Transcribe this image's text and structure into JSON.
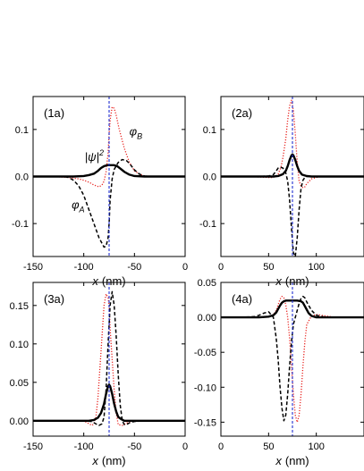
{
  "chart_data": [
    {
      "type": "line",
      "panel_label": "(1a)",
      "xlabel_italic": "x",
      "xlabel_unit": "(nm)",
      "xlim": [
        -150,
        0
      ],
      "ylim": [
        -0.17,
        0.17
      ],
      "xticks": [
        -150,
        -100,
        -50,
        0
      ],
      "xtick_labels": [
        "-150",
        "-100",
        "-50",
        "0"
      ],
      "yticks": [
        -0.1,
        0.0,
        0.1
      ],
      "ytick_labels": [
        "-0.1",
        "0.0",
        "0.1"
      ],
      "vline_x": -75,
      "annotations": [
        {
          "text": "|ψ|²",
          "x": -99,
          "y": 0.033
        },
        {
          "text": "φB",
          "x": -55,
          "y": 0.087
        },
        {
          "text": "φA",
          "x": -112,
          "y": -0.068
        }
      ],
      "series": [
        {
          "style": "dotted-red",
          "x": [
            -130,
            -115,
            -105,
            -100,
            -95,
            -90,
            -85,
            -82,
            -80,
            -78,
            -76,
            -75,
            -74,
            -72,
            -70,
            -68,
            -65,
            -60,
            -55,
            -50,
            -45,
            -40,
            -35,
            -30,
            -20
          ],
          "y": [
            0,
            -0.002,
            -0.005,
            -0.008,
            -0.012,
            -0.018,
            -0.022,
            -0.018,
            -0.01,
            0.01,
            0.05,
            0.09,
            0.12,
            0.148,
            0.145,
            0.13,
            0.1,
            0.06,
            0.03,
            0.012,
            0.005,
            0.001,
            0,
            0,
            0
          ]
        },
        {
          "style": "dashed-black",
          "x": [
            -130,
            -120,
            -115,
            -110,
            -105,
            -100,
            -95,
            -90,
            -85,
            -80,
            -78,
            -76,
            -75,
            -74,
            -72,
            -70,
            -66,
            -62,
            -58,
            -55,
            -50,
            -45,
            -40,
            -30,
            -20
          ],
          "y": [
            0,
            0,
            -0.002,
            -0.008,
            -0.02,
            -0.04,
            -0.07,
            -0.1,
            -0.13,
            -0.15,
            -0.148,
            -0.13,
            -0.1,
            -0.05,
            -0.005,
            0.015,
            0.03,
            0.036,
            0.034,
            0.028,
            0.014,
            0.005,
            0.001,
            0,
            0
          ]
        },
        {
          "style": "solid-black",
          "x": [
            -150,
            -110,
            -100,
            -95,
            -90,
            -86,
            -83,
            -80,
            -77,
            -75,
            -73,
            -70,
            -67,
            -64,
            -60,
            -55,
            -50,
            -40,
            0
          ],
          "y": [
            0,
            0,
            0.001,
            0.003,
            0.006,
            0.012,
            0.018,
            0.022,
            0.024,
            0.024,
            0.024,
            0.024,
            0.022,
            0.017,
            0.01,
            0.004,
            0.001,
            0,
            0
          ]
        }
      ]
    },
    {
      "type": "line",
      "panel_label": "(2a)",
      "xlabel_italic": "x",
      "xlabel_unit": "(nm)",
      "xlim": [
        0,
        150
      ],
      "ylim": [
        -0.17,
        0.17
      ],
      "xticks": [
        0,
        50,
        100
      ],
      "xtick_labels": [
        "0",
        "50",
        "100"
      ],
      "yticks": [
        -0.1,
        0.0,
        0.1
      ],
      "ytick_labels": [
        "-0.1",
        "0.0",
        "0.1"
      ],
      "vline_x": 75,
      "annotations": [],
      "series": [
        {
          "style": "dotted-red",
          "x": [
            30,
            40,
            50,
            55,
            60,
            63,
            65,
            68,
            70,
            72,
            74,
            76,
            78,
            80,
            82,
            84,
            86,
            88,
            90,
            95,
            100,
            105,
            110,
            120
          ],
          "y": [
            0,
            -0.001,
            -0.002,
            -0.002,
            0.005,
            0.02,
            0.04,
            0.08,
            0.12,
            0.15,
            0.162,
            0.14,
            0.09,
            0.03,
            -0.01,
            -0.02,
            -0.024,
            -0.022,
            -0.015,
            -0.005,
            -0.002,
            0,
            0,
            0
          ]
        },
        {
          "style": "dashed-black",
          "x": [
            30,
            40,
            50,
            55,
            58,
            60,
            62,
            65,
            68,
            70,
            72,
            74,
            76,
            78,
            80,
            82,
            84,
            86,
            88,
            90,
            95,
            100,
            110,
            120
          ],
          "y": [
            0,
            0,
            0.001,
            0.004,
            0.012,
            0.018,
            0.02,
            0.018,
            0.008,
            -0.01,
            -0.05,
            -0.11,
            -0.162,
            -0.17,
            -0.13,
            -0.07,
            -0.025,
            -0.008,
            -0.002,
            0,
            0,
            0,
            0,
            0
          ]
        },
        {
          "style": "solid-black",
          "x": [
            0,
            55,
            60,
            65,
            68,
            70,
            72,
            74,
            75,
            76,
            78,
            80,
            82,
            85,
            90,
            95,
            150
          ],
          "y": [
            0,
            0,
            0.001,
            0.005,
            0.012,
            0.022,
            0.035,
            0.045,
            0.047,
            0.045,
            0.035,
            0.022,
            0.012,
            0.004,
            0.001,
            0,
            0
          ]
        }
      ]
    },
    {
      "type": "line",
      "panel_label": "(3a)",
      "xlabel_italic": "x",
      "xlabel_unit": "(nm)",
      "xlim": [
        -150,
        0
      ],
      "ylim": [
        -0.02,
        0.18
      ],
      "xticks": [
        -150,
        -100,
        -50,
        0
      ],
      "xtick_labels": [
        "-150",
        "-100",
        "-50",
        "0"
      ],
      "yticks": [
        0.0,
        0.05,
        0.1,
        0.15
      ],
      "ytick_labels": [
        "0.00",
        "0.05",
        "0.10",
        "0.15"
      ],
      "vline_x": -75,
      "annotations": [],
      "series": [
        {
          "style": "dotted-red",
          "x": [
            -130,
            -110,
            -100,
            -96,
            -92,
            -90,
            -88,
            -86,
            -84,
            -82,
            -80,
            -78,
            -76,
            -75,
            -74,
            -72,
            -70,
            -68,
            -66,
            -62,
            -58,
            -54,
            -50,
            -40,
            -20
          ],
          "y": [
            0,
            0,
            0,
            -0.003,
            -0.006,
            -0.004,
            0.005,
            0.03,
            0.07,
            0.11,
            0.15,
            0.165,
            0.16,
            0.15,
            0.12,
            0.08,
            0.04,
            0.01,
            -0.005,
            -0.006,
            -0.003,
            -0.001,
            0,
            0,
            0
          ]
        },
        {
          "style": "dashed-black",
          "x": [
            -130,
            -110,
            -100,
            -92,
            -88,
            -85,
            -82,
            -80,
            -78,
            -76,
            -74,
            -72,
            -70,
            -68,
            -66,
            -64,
            -62,
            -60,
            -58,
            -54,
            -50,
            -40,
            -20
          ],
          "y": [
            0,
            0,
            0,
            -0.001,
            -0.004,
            -0.006,
            -0.004,
            0.005,
            0.04,
            0.1,
            0.15,
            0.168,
            0.15,
            0.11,
            0.06,
            0.02,
            0.0,
            -0.005,
            -0.005,
            -0.002,
            -0.001,
            0,
            0
          ]
        },
        {
          "style": "solid-black",
          "x": [
            -150,
            -95,
            -90,
            -86,
            -83,
            -80,
            -78,
            -76,
            -75,
            -74,
            -72,
            -70,
            -68,
            -66,
            -63,
            -60,
            -55,
            0
          ],
          "y": [
            0,
            0,
            0.001,
            0.004,
            0.01,
            0.022,
            0.035,
            0.045,
            0.047,
            0.045,
            0.035,
            0.022,
            0.012,
            0.005,
            0.002,
            0,
            0,
            0
          ]
        }
      ]
    },
    {
      "type": "line",
      "panel_label": "(4a)",
      "xlabel_italic": "x",
      "xlabel_unit": "(nm)",
      "xlim": [
        0,
        150
      ],
      "ylim": [
        -0.17,
        0.05
      ],
      "xticks": [
        0,
        50,
        100
      ],
      "xtick_labels": [
        "0",
        "50",
        "100"
      ],
      "yticks": [
        -0.15,
        -0.1,
        -0.05,
        0.0,
        0.05
      ],
      "ytick_labels": [
        "-0.15",
        "-0.10",
        "-0.05",
        "0.00",
        "0.05"
      ],
      "vline_x": 75,
      "annotations": [],
      "series": [
        {
          "style": "dotted-red",
          "x": [
            20,
            40,
            50,
            55,
            58,
            60,
            62,
            64,
            66,
            68,
            70,
            72,
            74,
            76,
            78,
            80,
            82,
            84,
            86,
            88,
            90,
            95,
            100,
            110,
            120,
            150
          ],
          "y": [
            0,
            0,
            0.001,
            0.004,
            0.01,
            0.018,
            0.026,
            0.03,
            0.028,
            0.018,
            0.0,
            -0.03,
            -0.07,
            -0.11,
            -0.14,
            -0.15,
            -0.14,
            -0.11,
            -0.07,
            -0.035,
            -0.01,
            0.002,
            0.004,
            0.002,
            0.0,
            0
          ]
        },
        {
          "style": "dashed-black",
          "x": [
            20,
            35,
            40,
            45,
            50,
            55,
            58,
            60,
            62,
            64,
            66,
            68,
            70,
            72,
            74,
            76,
            78,
            80,
            82,
            84,
            86,
            88,
            90,
            95,
            100,
            110,
            150
          ],
          "y": [
            0,
            0.001,
            0.003,
            0.006,
            0.008,
            0.0,
            -0.03,
            -0.06,
            -0.1,
            -0.13,
            -0.148,
            -0.14,
            -0.11,
            -0.07,
            -0.035,
            -0.01,
            0.0,
            0.01,
            0.02,
            0.027,
            0.03,
            0.028,
            0.022,
            0.01,
            0.003,
            0,
            0
          ]
        },
        {
          "style": "solid-black",
          "x": [
            0,
            40,
            50,
            55,
            58,
            60,
            62,
            64,
            66,
            68,
            70,
            75,
            80,
            84,
            86,
            88,
            90,
            92,
            95,
            100,
            150
          ],
          "y": [
            0,
            0,
            0.001,
            0.003,
            0.007,
            0.012,
            0.017,
            0.021,
            0.023,
            0.024,
            0.024,
            0.024,
            0.024,
            0.023,
            0.021,
            0.016,
            0.011,
            0.006,
            0.002,
            0,
            0
          ]
        }
      ]
    }
  ]
}
